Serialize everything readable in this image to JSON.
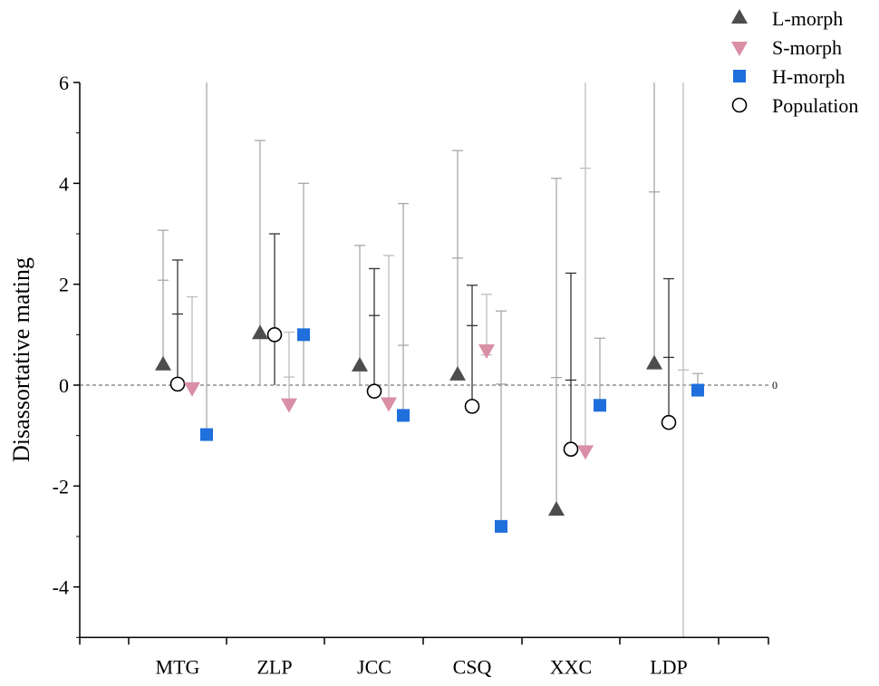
{
  "chart_data": {
    "type": "scatter",
    "title": "",
    "xlabel": "",
    "ylabel": "Disassortative mating",
    "ylim": [
      -5,
      6
    ],
    "yticks": [
      -4,
      -2,
      0,
      2,
      4,
      6
    ],
    "ytick_labels": [
      "-4",
      "-2",
      "0",
      "2",
      "4",
      "6"
    ],
    "reference_line": {
      "value": 0,
      "label": "0",
      "style": "dashed"
    },
    "legend_position": "top-right",
    "categories": [
      "MTG",
      "ZLP",
      "JCC",
      "CSQ",
      "XXC",
      "LDP"
    ],
    "series": [
      {
        "name": "L-morph",
        "marker": "triangle-up",
        "color": "#4d4d4d",
        "bar_color": "#a8a8a8",
        "points": [
          {
            "value": 0.4,
            "low": 0.4,
            "high": 3.07,
            "mid": 2.08
          },
          {
            "value": 1.02,
            "low": 0,
            "high": 4.85,
            "mid": null
          },
          {
            "value": 0.38,
            "low": 0,
            "high": 2.77,
            "mid": null
          },
          {
            "value": 0.2,
            "low": 0.2,
            "high": 4.65,
            "mid": 2.52
          },
          {
            "value": -2.48,
            "low": -2.48,
            "high": 4.1,
            "mid": 0.15
          },
          {
            "value": 0.42,
            "low": 0.42,
            "high": 6,
            "mid": 3.83
          }
        ]
      },
      {
        "name": "Population",
        "marker": "circle",
        "color": "#000000",
        "bar_color": "#333333",
        "points": [
          {
            "value": 0.02,
            "low": 0.02,
            "high": 2.48,
            "mid": 1.41
          },
          {
            "value": 1.0,
            "low": 0,
            "high": 3.0,
            "mid": null
          },
          {
            "value": -0.12,
            "low": -0.12,
            "high": 2.31,
            "mid": 1.38
          },
          {
            "value": -0.42,
            "low": -0.42,
            "high": 1.98,
            "mid": 1.18
          },
          {
            "value": -1.27,
            "low": -1.27,
            "high": 2.22,
            "mid": 0.1
          },
          {
            "value": -0.74,
            "low": -0.74,
            "high": 2.11,
            "mid": 0.55
          }
        ]
      },
      {
        "name": "S-morph",
        "marker": "triangle-down",
        "color": "#d98fa5",
        "bar_color": "#bdbdbd",
        "points": [
          {
            "value": -0.05,
            "low": 0,
            "high": 1.75,
            "mid": null
          },
          {
            "value": -0.37,
            "low": -0.37,
            "high": 1.05,
            "mid": 0.16
          },
          {
            "value": -0.35,
            "low": -0.35,
            "high": 2.57,
            "mid": null
          },
          {
            "value": 0.7,
            "low": 0.6,
            "high": 1.8,
            "mid": 0.6
          },
          {
            "value": -1.3,
            "low": -1.3,
            "high": 6,
            "mid": 4.3
          },
          {
            "value": null,
            "low": -5,
            "high": 6,
            "mid": 0.3
          }
        ]
      },
      {
        "name": "H-morph",
        "marker": "square",
        "color": "#1f6fdc",
        "bar_color": "#a8a8a8",
        "points": [
          {
            "value": -0.98,
            "low": -0.98,
            "high": 6,
            "mid": null
          },
          {
            "value": 1.0,
            "low": 0,
            "high": 4.0,
            "mid": null
          },
          {
            "value": -0.6,
            "low": -0.6,
            "high": 3.6,
            "mid": 0.79
          },
          {
            "value": -2.8,
            "low": -2.8,
            "high": 1.47,
            "mid": 0.02
          },
          {
            "value": -0.4,
            "low": -0.4,
            "high": 0.93,
            "mid": null
          },
          {
            "value": -0.1,
            "low": -0.1,
            "high": 0.23,
            "mid": null
          }
        ]
      }
    ]
  }
}
